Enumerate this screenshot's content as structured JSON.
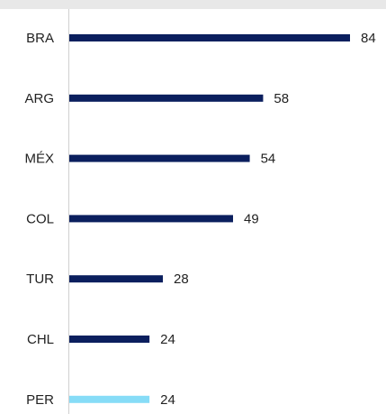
{
  "chart_data": {
    "type": "bar",
    "orientation": "horizontal",
    "categories": [
      "BRA",
      "ARG",
      "MÉX",
      "COL",
      "TUR",
      "CHL",
      "PER"
    ],
    "values": [
      84,
      58,
      54,
      49,
      28,
      24,
      24
    ],
    "colors": [
      "#0b1f5e",
      "#0b1f5e",
      "#0b1f5e",
      "#0b1f5e",
      "#0b1f5e",
      "#0b1f5e",
      "#86dcf7"
    ]
  }
}
